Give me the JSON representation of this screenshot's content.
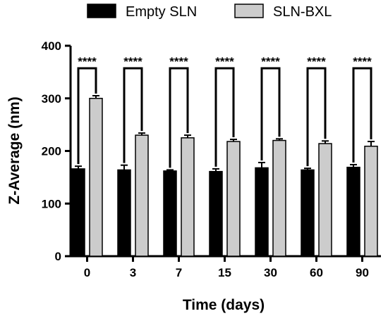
{
  "chart_data": {
    "type": "bar",
    "title": "",
    "xlabel": "Time (days)",
    "ylabel": "Z-Average (nm)",
    "categories": [
      "0",
      "3",
      "7",
      "15",
      "30",
      "60",
      "90"
    ],
    "ylim": [
      0,
      400
    ],
    "yticks": [
      "0",
      "100",
      "200",
      "300",
      "400"
    ],
    "series": [
      {
        "name": "Empty SLN",
        "color": "#000000",
        "values": [
          166,
          164,
          162,
          161,
          168,
          164,
          169
        ],
        "errors": [
          5,
          9,
          2,
          5,
          10,
          3,
          5
        ]
      },
      {
        "name": "SLN-BXL",
        "color": "#cccccc",
        "values": [
          300,
          230,
          225,
          218,
          220,
          214,
          209
        ],
        "errors": [
          5,
          4,
          5,
          4,
          3,
          5,
          9
        ]
      }
    ],
    "significance": [
      "****",
      "****",
      "****",
      "****",
      "****",
      "****",
      "****"
    ],
    "legend_position": "top",
    "grid": false
  }
}
